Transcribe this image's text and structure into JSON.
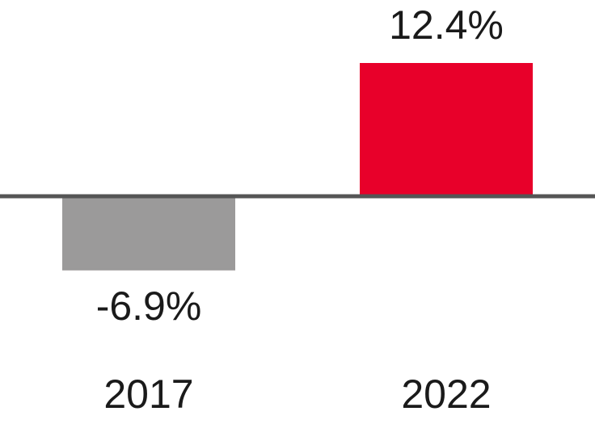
{
  "chart_data": {
    "type": "bar",
    "categories": [
      "2017",
      "2022"
    ],
    "values": [
      -6.9,
      12.4
    ],
    "value_labels": [
      "-6.9%",
      "12.4%"
    ],
    "colors": [
      "#9b9a9a",
      "#e8002a"
    ]
  }
}
